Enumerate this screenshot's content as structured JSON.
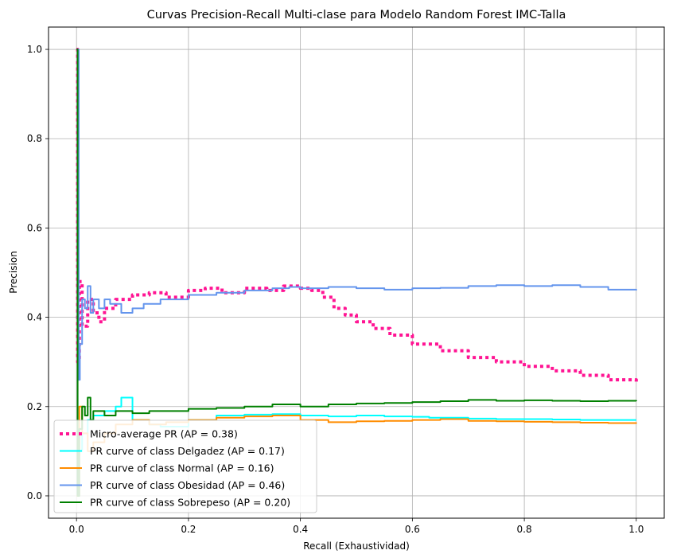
{
  "chart_data": {
    "type": "line",
    "title": "Curvas Precision-Recall Multi-clase para Modelo Random Forest IMC-Talla",
    "xlabel": "Recall (Exhaustividad)",
    "ylabel": "Precision",
    "xlim": [
      -0.05,
      1.05
    ],
    "ylim": [
      -0.05,
      1.05
    ],
    "xticks": [
      0.0,
      0.2,
      0.4,
      0.6,
      0.8,
      1.0
    ],
    "xtick_labels": [
      "0.0",
      "0.2",
      "0.4",
      "0.6",
      "0.8",
      "1.0"
    ],
    "yticks": [
      0.0,
      0.2,
      0.4,
      0.6,
      0.8,
      1.0
    ],
    "ytick_labels": [
      "0.0",
      "0.2",
      "0.4",
      "0.6",
      "0.8",
      "1.0"
    ],
    "grid": true,
    "legend_position": "bottom-left",
    "series": [
      {
        "name": "Micro-average PR (AP = 0.38)",
        "color": "#ff1493",
        "style": "dotted",
        "x": [
          0.0,
          0.002,
          0.005,
          0.01,
          0.02,
          0.03,
          0.04,
          0.05,
          0.07,
          0.1,
          0.13,
          0.16,
          0.2,
          0.23,
          0.26,
          0.3,
          0.34,
          0.37,
          0.4,
          0.42,
          0.44,
          0.46,
          0.48,
          0.5,
          0.53,
          0.56,
          0.6,
          0.65,
          0.7,
          0.75,
          0.8,
          0.85,
          0.9,
          0.95,
          1.0
        ],
        "y": [
          1.0,
          0.3,
          0.48,
          0.38,
          0.44,
          0.41,
          0.39,
          0.42,
          0.44,
          0.45,
          0.455,
          0.445,
          0.46,
          0.465,
          0.455,
          0.465,
          0.46,
          0.47,
          0.465,
          0.46,
          0.445,
          0.42,
          0.405,
          0.39,
          0.375,
          0.36,
          0.34,
          0.325,
          0.31,
          0.3,
          0.29,
          0.28,
          0.27,
          0.26,
          0.25
        ]
      },
      {
        "name": "PR curve of class Delgadez (AP = 0.17)",
        "color": "#00ffff",
        "style": "solid",
        "x": [
          0.0,
          0.002,
          0.01,
          0.02,
          0.03,
          0.05,
          0.07,
          0.08,
          0.1,
          0.13,
          0.15,
          0.2,
          0.25,
          0.3,
          0.35,
          0.4,
          0.45,
          0.5,
          0.55,
          0.6,
          0.63,
          0.7,
          0.75,
          0.8,
          0.85,
          0.9,
          0.95,
          1.0
        ],
        "y": [
          0.0,
          0.1,
          0.14,
          0.17,
          0.18,
          0.19,
          0.2,
          0.22,
          0.17,
          0.16,
          0.155,
          0.17,
          0.18,
          0.182,
          0.183,
          0.18,
          0.178,
          0.18,
          0.178,
          0.177,
          0.175,
          0.173,
          0.172,
          0.172,
          0.171,
          0.17,
          0.17,
          0.17
        ]
      },
      {
        "name": "PR curve of class Normal (AP = 0.16)",
        "color": "#ff8c00",
        "style": "solid",
        "x": [
          0.0,
          0.005,
          0.01,
          0.02,
          0.03,
          0.05,
          0.07,
          0.1,
          0.13,
          0.16,
          0.2,
          0.25,
          0.3,
          0.35,
          0.4,
          0.45,
          0.5,
          0.55,
          0.6,
          0.65,
          0.7,
          0.75,
          0.8,
          0.85,
          0.9,
          0.95,
          1.0
        ],
        "y": [
          0.0,
          0.2,
          0.14,
          0.1,
          0.12,
          0.14,
          0.16,
          0.17,
          0.16,
          0.165,
          0.17,
          0.175,
          0.178,
          0.18,
          0.17,
          0.165,
          0.167,
          0.168,
          0.17,
          0.172,
          0.168,
          0.167,
          0.166,
          0.165,
          0.164,
          0.163,
          0.162
        ]
      },
      {
        "name": "PR curve of class Obesidad (AP = 0.46)",
        "color": "#6495ed",
        "style": "solid",
        "x": [
          0.0,
          0.002,
          0.004,
          0.006,
          0.01,
          0.015,
          0.02,
          0.025,
          0.03,
          0.04,
          0.05,
          0.06,
          0.08,
          0.1,
          0.12,
          0.15,
          0.2,
          0.25,
          0.3,
          0.35,
          0.38,
          0.4,
          0.45,
          0.5,
          0.55,
          0.6,
          0.65,
          0.7,
          0.75,
          0.8,
          0.85,
          0.9,
          0.95,
          1.0
        ],
        "y": [
          0.4,
          1.0,
          0.26,
          0.34,
          0.44,
          0.42,
          0.47,
          0.41,
          0.44,
          0.42,
          0.44,
          0.43,
          0.41,
          0.42,
          0.43,
          0.44,
          0.45,
          0.455,
          0.46,
          0.465,
          0.468,
          0.465,
          0.468,
          0.465,
          0.462,
          0.465,
          0.466,
          0.47,
          0.472,
          0.47,
          0.472,
          0.468,
          0.462,
          0.46
        ]
      },
      {
        "name": "PR curve of class Sobrepeso (AP = 0.20)",
        "color": "#008000",
        "style": "solid",
        "x": [
          0.0,
          0.002,
          0.005,
          0.01,
          0.015,
          0.02,
          0.025,
          0.03,
          0.05,
          0.07,
          0.1,
          0.13,
          0.15,
          0.2,
          0.25,
          0.3,
          0.35,
          0.4,
          0.45,
          0.5,
          0.55,
          0.6,
          0.65,
          0.7,
          0.75,
          0.8,
          0.85,
          0.9,
          0.95,
          1.0
        ],
        "y": [
          1.0,
          0.0,
          0.15,
          0.2,
          0.18,
          0.22,
          0.17,
          0.19,
          0.18,
          0.19,
          0.185,
          0.19,
          0.19,
          0.195,
          0.197,
          0.2,
          0.205,
          0.2,
          0.205,
          0.207,
          0.208,
          0.21,
          0.212,
          0.215,
          0.213,
          0.214,
          0.213,
          0.212,
          0.213,
          0.212
        ]
      }
    ]
  }
}
